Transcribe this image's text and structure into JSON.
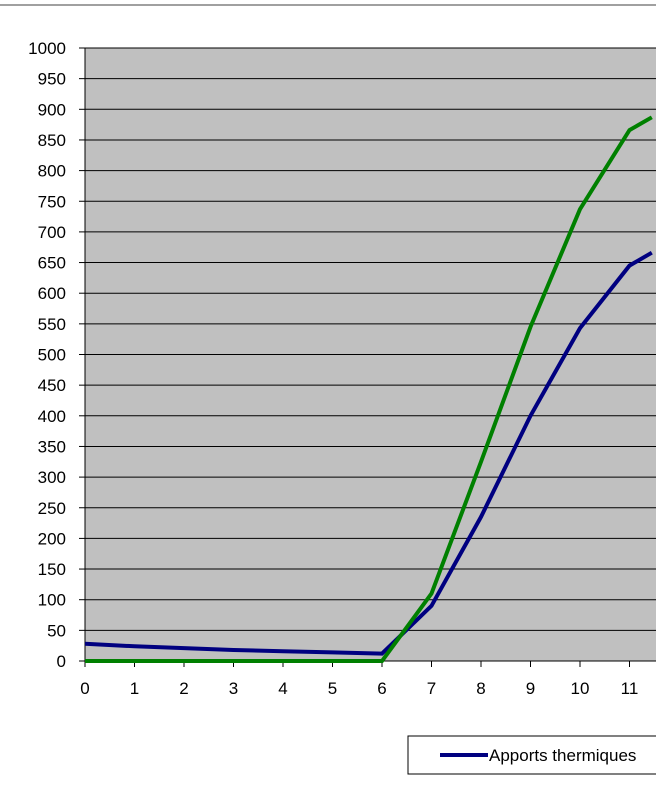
{
  "colors": {
    "plot_background": "#c0c0c0",
    "gridline": "#000000",
    "top_border": "#808080"
  },
  "chart_data": {
    "type": "line",
    "title": "",
    "xlabel": "",
    "ylabel": "",
    "x": [
      0,
      1,
      2,
      3,
      4,
      5,
      6,
      7,
      8,
      9,
      10,
      11,
      11.45
    ],
    "x_tick_labels": [
      "0",
      "1",
      "2",
      "3",
      "4",
      "5",
      "6",
      "7",
      "8",
      "9",
      "10",
      "11"
    ],
    "y_tick_labels": [
      "0",
      "50",
      "100",
      "150",
      "200",
      "250",
      "300",
      "350",
      "400",
      "450",
      "500",
      "550",
      "600",
      "650",
      "700",
      "750",
      "800",
      "850",
      "900",
      "950",
      "1000"
    ],
    "ylim": [
      0,
      1000
    ],
    "xlim": [
      0,
      11.45
    ],
    "grid": true,
    "legend_position": "bottom-right",
    "series": [
      {
        "name": "Apports thermiques",
        "color": "#000080",
        "values": [
          28,
          24,
          21,
          18,
          16,
          14,
          12,
          90,
          235,
          400,
          543,
          645,
          666
        ]
      },
      {
        "name": "",
        "color": "#008000",
        "values": [
          0,
          0,
          0,
          0,
          0,
          0,
          0,
          110,
          325,
          545,
          737,
          866,
          887
        ]
      }
    ]
  }
}
